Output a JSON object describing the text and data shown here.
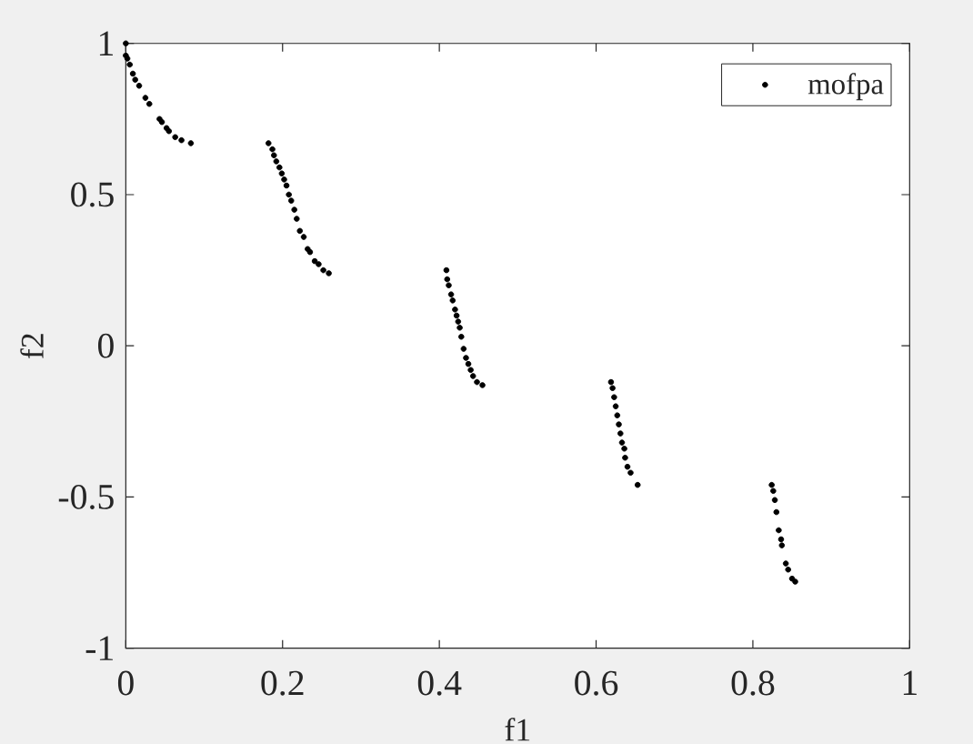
{
  "chart_data": {
    "type": "scatter",
    "xlabel": "f1",
    "ylabel": "f2",
    "xlim": [
      0,
      1
    ],
    "ylim": [
      -1,
      1
    ],
    "xticks": [
      0,
      0.2,
      0.4,
      0.6,
      0.8,
      1
    ],
    "yticks": [
      -1,
      -0.5,
      0,
      0.5,
      1
    ],
    "legend": "top right",
    "marker": "circle",
    "series": [
      {
        "name": "mofpa",
        "color": "#000000",
        "x": [
          0,
          0,
          0.002,
          0.005,
          0.009,
          0.012,
          0.017,
          0.025,
          0.03,
          0.043,
          0.046,
          0.052,
          0.055,
          0.063,
          0.071,
          0.083,
          0.182,
          0.187,
          0.189,
          0.192,
          0.196,
          0.199,
          0.202,
          0.205,
          0.208,
          0.211,
          0.215,
          0.218,
          0.222,
          0.227,
          0.232,
          0.235,
          0.241,
          0.246,
          0.252,
          0.259,
          0.409,
          0.41,
          0.412,
          0.415,
          0.417,
          0.42,
          0.422,
          0.424,
          0.426,
          0.428,
          0.431,
          0.434,
          0.437,
          0.44,
          0.443,
          0.448,
          0.455,
          0.619,
          0.621,
          0.623,
          0.625,
          0.627,
          0.629,
          0.631,
          0.633,
          0.636,
          0.637,
          0.64,
          0.644,
          0.653,
          0.824,
          0.826,
          0.828,
          0.83,
          0.833,
          0.836,
          0.837,
          0.842,
          0.845,
          0.85,
          0.854
        ],
        "values": [
          1.0,
          0.96,
          0.95,
          0.93,
          0.9,
          0.88,
          0.86,
          0.82,
          0.8,
          0.75,
          0.74,
          0.72,
          0.71,
          0.69,
          0.68,
          0.67,
          0.67,
          0.65,
          0.63,
          0.61,
          0.59,
          0.57,
          0.55,
          0.53,
          0.5,
          0.48,
          0.45,
          0.42,
          0.38,
          0.36,
          0.32,
          0.31,
          0.28,
          0.27,
          0.25,
          0.24,
          0.25,
          0.22,
          0.2,
          0.17,
          0.15,
          0.12,
          0.1,
          0.08,
          0.06,
          0.03,
          -0.01,
          -0.04,
          -0.06,
          -0.08,
          -0.1,
          -0.12,
          -0.13,
          -0.12,
          -0.14,
          -0.17,
          -0.2,
          -0.23,
          -0.26,
          -0.29,
          -0.32,
          -0.34,
          -0.37,
          -0.4,
          -0.42,
          -0.46,
          -0.46,
          -0.48,
          -0.51,
          -0.55,
          -0.61,
          -0.64,
          -0.66,
          -0.72,
          -0.74,
          -0.77,
          -0.78
        ]
      }
    ]
  }
}
